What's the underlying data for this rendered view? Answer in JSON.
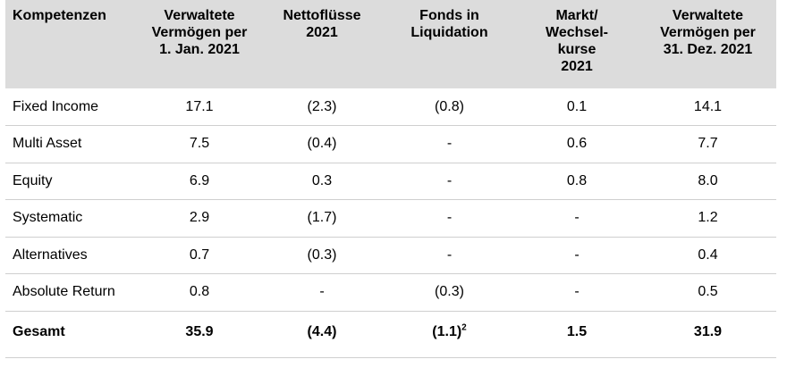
{
  "columns": [
    "Kompetenzen",
    "Verwaltete Vermögen per 1. Jan. 2021",
    "Nettoflüsse 2021",
    "Fonds in Liquidation",
    "Markt/ Wechsel-kurse 2021",
    "Verwaltete Vermögen per 31. Dez. 2021"
  ],
  "header_lines": [
    [
      "Kompetenzen"
    ],
    [
      "Verwaltete",
      "Vermögen per",
      "1. Jan. 2021"
    ],
    [
      "Nettoflüsse",
      "2021"
    ],
    [
      "Fonds in",
      "Liquidation"
    ],
    [
      "Markt/",
      "Wechsel-",
      "kurse",
      "2021"
    ],
    [
      "Verwaltete",
      "Vermögen per",
      "31. Dez. 2021"
    ]
  ],
  "rows": [
    [
      "Fixed Income",
      "17.1",
      "(2.3)",
      "(0.8)",
      "0.1",
      "14.1"
    ],
    [
      "Multi Asset",
      "7.5",
      "(0.4)",
      "-",
      "0.6",
      "7.7"
    ],
    [
      "Equity",
      "6.9",
      "0.3",
      "-",
      "0.8",
      "8.0"
    ],
    [
      "Systematic",
      "2.9",
      "(1.7)",
      "-",
      "-",
      "1.2"
    ],
    [
      "Alternatives",
      "0.7",
      "(0.3)",
      "-",
      "-",
      "0.4"
    ],
    [
      "Absolute Return",
      "0.8",
      "-",
      "(0.3)",
      "-",
      "0.5"
    ]
  ],
  "total": {
    "label": "Gesamt",
    "values": [
      "35.9",
      "(4.4)",
      "(1.1)",
      "1.5",
      "31.9"
    ],
    "liquidation_footnote": "2"
  }
}
